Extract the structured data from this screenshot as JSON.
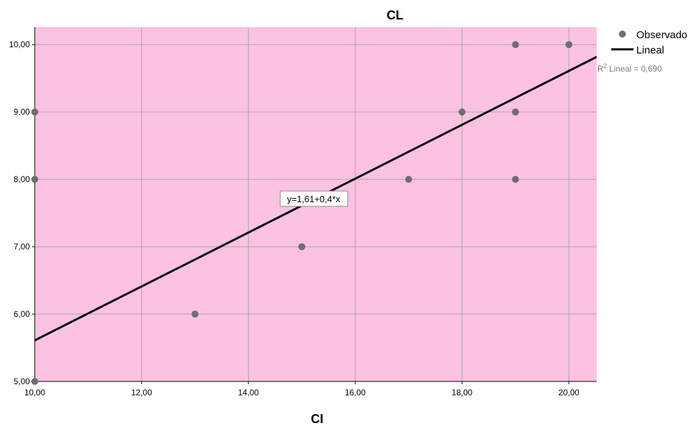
{
  "chart_data": {
    "type": "scatter",
    "title": "CL",
    "xlabel": "CI",
    "ylabel": "",
    "xlim": [
      10,
      20.52
    ],
    "ylim": [
      5,
      10.26
    ],
    "x_ticks": [
      10,
      12,
      14,
      16,
      18,
      20
    ],
    "y_ticks": [
      5,
      6,
      7,
      8,
      9,
      10
    ],
    "x_tick_labels": [
      "10,00",
      "12,00",
      "14,00",
      "16,00",
      "18,00",
      "20,00"
    ],
    "y_tick_labels": [
      "5,00",
      "6,00",
      "7,00",
      "8,00",
      "9,00",
      "10,00"
    ],
    "grid": true,
    "plot_background": "#fcc2e2",
    "point_color": "#6e6e6e",
    "line_color": "#000000",
    "series": [
      {
        "name": "Observado",
        "kind": "points",
        "x": [
          10,
          10,
          10,
          13,
          15,
          17,
          18,
          19,
          19,
          19,
          20
        ],
        "y": [
          5,
          8,
          9,
          6,
          7,
          8,
          9,
          8,
          9,
          10,
          10
        ]
      },
      {
        "name": "Lineal",
        "kind": "line",
        "intercept": 1.61,
        "slope": 0.4
      }
    ],
    "legend": {
      "position": "top-right",
      "observed_label": "Observado",
      "line_label": "Lineal",
      "r2_prefix": "R",
      "r2_sup": "2",
      "r2_text": " Lineal = 0,690"
    },
    "equation_label": "y=1,61+0,4*x"
  }
}
